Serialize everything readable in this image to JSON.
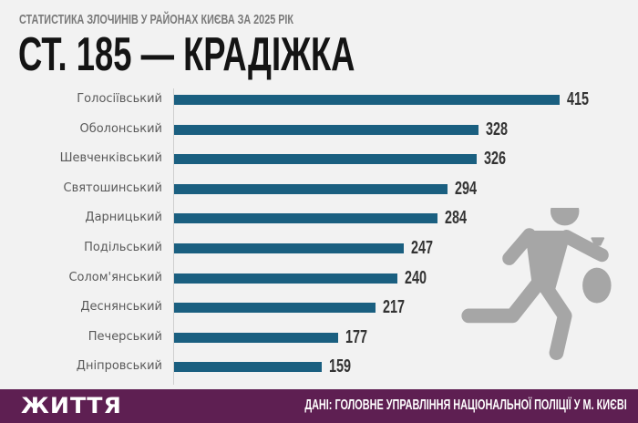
{
  "header": {
    "subtitle": "СТАТИСТИКА ЗЛОЧИНІВ У РАЙОНАХ КИЄВА ЗА 2025 РІК",
    "title": "СТ. 185 — КРАДІЖКА"
  },
  "colors": {
    "background": "#f2f2f2",
    "bar": "#1a5f80",
    "footer": "#5e1f52",
    "icon": "#a6a6a6"
  },
  "illustration": {
    "icon": "running-thief-with-money-bag-icon"
  },
  "footer": {
    "logo": "ЖИТТЯ",
    "source": "ДАНІ: ГОЛОВНЕ УПРАВЛІННЯ НАЦІОНАЛЬНОЇ ПОЛІЦІЇ У М. КИЄВІ"
  },
  "chart_data": {
    "type": "bar",
    "orientation": "horizontal",
    "title": "СТ. 185 — КРАДІЖКА",
    "subtitle": "СТАТИСТИКА ЗЛОЧИНІВ У РАЙОНАХ КИЄВА ЗА 2025 РІК",
    "xlabel": "",
    "ylabel": "",
    "grid": false,
    "legend": null,
    "data_labels": true,
    "categories": [
      "Голосіївський",
      "Оболонський",
      "Шевченківський",
      "Святошинський",
      "Дарницький",
      "Подільський",
      "Солом'янський",
      "Деснянський",
      "Печерський",
      "Дніпровський"
    ],
    "values": [
      415,
      328,
      326,
      294,
      284,
      247,
      240,
      217,
      177,
      159
    ],
    "value_labels": [
      "415",
      "328",
      "326",
      "294",
      "284",
      "247",
      "240",
      "217",
      "177",
      "159"
    ],
    "xlim": [
      0,
      415
    ]
  }
}
